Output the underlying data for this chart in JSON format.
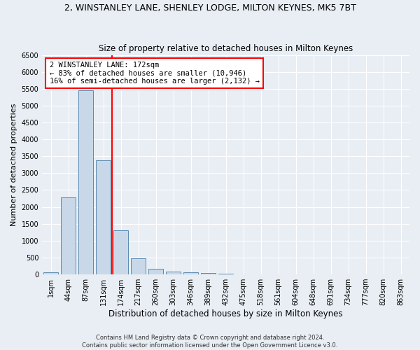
{
  "title": "2, WINSTANLEY LANE, SHENLEY LODGE, MILTON KEYNES, MK5 7BT",
  "subtitle": "Size of property relative to detached houses in Milton Keynes",
  "xlabel": "Distribution of detached houses by size in Milton Keynes",
  "ylabel": "Number of detached properties",
  "footer_line1": "Contains HM Land Registry data © Crown copyright and database right 2024.",
  "footer_line2": "Contains public sector information licensed under the Open Government Licence v3.0.",
  "categories": [
    "1sqm",
    "44sqm",
    "87sqm",
    "131sqm",
    "174sqm",
    "217sqm",
    "260sqm",
    "303sqm",
    "346sqm",
    "389sqm",
    "432sqm",
    "475sqm",
    "518sqm",
    "561sqm",
    "604sqm",
    "648sqm",
    "691sqm",
    "734sqm",
    "777sqm",
    "820sqm",
    "863sqm"
  ],
  "values": [
    60,
    2280,
    5450,
    3380,
    1300,
    480,
    175,
    90,
    65,
    40,
    20,
    10,
    5,
    3,
    2,
    1,
    0,
    0,
    0,
    0,
    0
  ],
  "bar_color": "#c8d8e8",
  "bar_edge_color": "#5a8ab0",
  "vline_x": 3.5,
  "vline_color": "red",
  "annotation_text": "2 WINSTANLEY LANE: 172sqm\n← 83% of detached houses are smaller (10,946)\n16% of semi-detached houses are larger (2,132) →",
  "ylim": [
    0,
    6500
  ],
  "yticks": [
    0,
    500,
    1000,
    1500,
    2000,
    2500,
    3000,
    3500,
    4000,
    4500,
    5000,
    5500,
    6000,
    6500
  ],
  "bg_color": "#e8eef4",
  "title_fontsize": 9,
  "subtitle_fontsize": 8.5,
  "axis_label_fontsize": 8,
  "tick_fontsize": 7
}
